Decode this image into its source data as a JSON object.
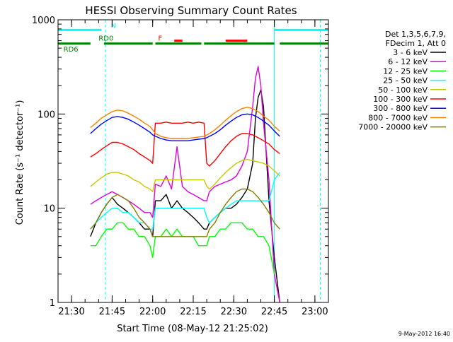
{
  "chart_data": {
    "type": "line",
    "title": "HESSI Observing Summary Count Rates",
    "xlabel": "Start Time (08-May-12 21:25:02)",
    "ylabel": "Count Rate (s⁻¹ detector⁻¹)",
    "x_unit": "minutes after 21:25:02",
    "xlim": [
      0,
      100
    ],
    "ylim": [
      1,
      1000
    ],
    "yscale": "log",
    "x_ticks": [
      {
        "x": 5,
        "label": "21:30"
      },
      {
        "x": 20,
        "label": "21:45"
      },
      {
        "x": 35,
        "label": "22:00"
      },
      {
        "x": 50,
        "label": "22:15"
      },
      {
        "x": 65,
        "label": "22:30"
      },
      {
        "x": 80,
        "label": "22:45"
      },
      {
        "x": 95,
        "label": "23:00"
      }
    ],
    "y_ticks": [
      {
        "y": 1,
        "label": "1"
      },
      {
        "y": 10,
        "label": "10"
      },
      {
        "y": 100,
        "label": "100"
      },
      {
        "y": 1000,
        "label": "1000"
      }
    ],
    "legend": {
      "position": "right",
      "header": [
        "Det 1,3,5,6,7,9,",
        "FDecim 1, Att 0"
      ]
    },
    "series": [
      {
        "name": "3 - 6 keV",
        "color": "#000000",
        "x": [
          12,
          14,
          16,
          18,
          20,
          22,
          24,
          26,
          28,
          30,
          32,
          34,
          35,
          36,
          38,
          40,
          42,
          44,
          46,
          48,
          50,
          52,
          54,
          55,
          56,
          58,
          60,
          62,
          64,
          66,
          68,
          70,
          72,
          73,
          74,
          75,
          76,
          78,
          80,
          82
        ],
        "y": [
          5,
          7,
          9,
          11,
          13,
          11,
          10,
          9,
          8,
          7,
          6,
          6,
          5,
          12,
          12,
          14,
          10,
          12,
          10,
          9,
          8,
          7,
          6,
          6,
          7,
          8,
          9,
          10,
          10,
          11,
          13,
          16,
          30,
          90,
          150,
          180,
          120,
          12,
          3,
          1
        ]
      },
      {
        "name": "6 - 12 keV",
        "color": "#e000e0",
        "x": [
          12,
          14,
          16,
          18,
          20,
          22,
          24,
          26,
          28,
          30,
          32,
          34,
          35,
          36,
          38,
          40,
          42,
          44,
          46,
          48,
          50,
          52,
          54,
          55,
          56,
          58,
          60,
          62,
          64,
          66,
          68,
          70,
          72,
          73,
          74,
          75,
          76,
          78,
          80,
          82
        ],
        "y": [
          11,
          12,
          13,
          14,
          15,
          14,
          13,
          12,
          11,
          10,
          9,
          9,
          8,
          18,
          17,
          22,
          16,
          45,
          17,
          15,
          14,
          13,
          12,
          12,
          15,
          17,
          18,
          19,
          20,
          22,
          28,
          40,
          120,
          240,
          320,
          200,
          80,
          20,
          2,
          1
        ]
      },
      {
        "name": "12 - 25 keV",
        "color": "#00ff00",
        "x": [
          12,
          14,
          16,
          18,
          20,
          22,
          24,
          26,
          28,
          30,
          32,
          34,
          35,
          36,
          38,
          40,
          42,
          44,
          46,
          48,
          50,
          52,
          54,
          55,
          56,
          58,
          60,
          62,
          64,
          66,
          68,
          70,
          72,
          74,
          76,
          78,
          80
        ],
        "y": [
          4,
          4,
          5,
          6,
          6,
          7,
          7,
          6,
          6,
          5,
          5,
          4,
          3,
          5,
          5,
          6,
          5,
          6,
          5,
          5,
          5,
          4,
          4,
          4,
          5,
          5,
          6,
          6,
          7,
          7,
          7,
          6,
          6,
          5,
          5,
          4,
          2
        ]
      },
      {
        "name": "25 - 50 keV",
        "color": "#00ffff",
        "x": [
          12,
          14,
          16,
          18,
          20,
          22,
          24,
          26,
          28,
          30,
          32,
          34,
          35,
          36,
          38,
          40,
          42,
          44,
          46,
          48,
          50,
          52,
          54,
          55,
          56,
          58,
          60,
          62,
          64,
          66,
          68,
          70,
          72,
          74,
          76,
          78,
          80,
          82
        ],
        "y": [
          6,
          7,
          8,
          9,
          10,
          10,
          9,
          9,
          8,
          7,
          7,
          6,
          6,
          10,
          10,
          10,
          10,
          10,
          10,
          10,
          10,
          10,
          10,
          8,
          7,
          8,
          9,
          10,
          11,
          12,
          12,
          12,
          12,
          12,
          12,
          12,
          20,
          24
        ]
      },
      {
        "name": "50 - 100 keV",
        "color": "#c8c800",
        "x": [
          12,
          14,
          16,
          18,
          20,
          22,
          24,
          26,
          28,
          30,
          32,
          34,
          35,
          36,
          38,
          40,
          42,
          44,
          46,
          48,
          50,
          52,
          54,
          55,
          56,
          58,
          60,
          62,
          64,
          66,
          68,
          70,
          72,
          74,
          76,
          78,
          80,
          82
        ],
        "y": [
          17,
          19,
          21,
          23,
          24,
          24,
          23,
          22,
          20,
          19,
          17,
          16,
          15,
          20,
          20,
          20,
          20,
          20,
          20,
          20,
          20,
          20,
          20,
          17,
          16,
          18,
          21,
          24,
          27,
          30,
          32,
          33,
          32,
          31,
          30,
          28,
          25,
          22
        ]
      },
      {
        "name": "100 - 300 keV",
        "color": "#ff0000",
        "x": [
          12,
          14,
          16,
          18,
          20,
          22,
          24,
          26,
          28,
          30,
          32,
          34,
          35,
          36,
          38,
          40,
          42,
          44,
          46,
          48,
          50,
          52,
          54,
          55,
          56,
          58,
          60,
          62,
          64,
          66,
          68,
          70,
          72,
          74,
          76,
          78,
          80,
          82
        ],
        "y": [
          35,
          38,
          42,
          46,
          50,
          50,
          48,
          45,
          42,
          38,
          35,
          32,
          30,
          80,
          80,
          82,
          80,
          80,
          80,
          82,
          80,
          82,
          80,
          30,
          28,
          32,
          38,
          45,
          52,
          58,
          62,
          62,
          60,
          56,
          52,
          48,
          42,
          38
        ]
      },
      {
        "name": "300 - 800 keV",
        "color": "#0000ff",
        "x": [
          12,
          14,
          16,
          18,
          20,
          22,
          24,
          26,
          28,
          30,
          32,
          34,
          35,
          36,
          38,
          40,
          42,
          44,
          46,
          48,
          50,
          52,
          54,
          55,
          56,
          58,
          60,
          62,
          64,
          66,
          68,
          70,
          72,
          74,
          76,
          78,
          80,
          82
        ],
        "y": [
          62,
          70,
          78,
          85,
          92,
          94,
          92,
          88,
          82,
          76,
          70,
          64,
          60,
          58,
          55,
          53,
          52,
          52,
          52,
          52,
          53,
          54,
          55,
          56,
          58,
          62,
          68,
          76,
          84,
          92,
          98,
          100,
          98,
          92,
          84,
          76,
          66,
          58
        ]
      },
      {
        "name": "800 - 7000 keV",
        "color": "#ff8000",
        "x": [
          12,
          14,
          16,
          18,
          20,
          22,
          24,
          26,
          28,
          30,
          32,
          34,
          35,
          36,
          38,
          40,
          42,
          44,
          46,
          48,
          50,
          52,
          54,
          55,
          56,
          58,
          60,
          62,
          64,
          66,
          68,
          70,
          72,
          74,
          76,
          78,
          80,
          82
        ],
        "y": [
          72,
          80,
          90,
          98,
          106,
          110,
          108,
          102,
          95,
          88,
          80,
          74,
          68,
          62,
          58,
          56,
          55,
          55,
          55,
          55,
          56,
          57,
          58,
          60,
          62,
          68,
          76,
          86,
          96,
          106,
          114,
          118,
          114,
          106,
          95,
          86,
          74,
          66
        ]
      },
      {
        "name": "7000 - 20000 keV",
        "color": "#808000",
        "x": [
          12,
          14,
          16,
          18,
          20,
          22,
          24,
          26,
          28,
          30,
          32,
          34,
          35,
          36,
          38,
          40,
          42,
          44,
          46,
          48,
          50,
          52,
          54,
          55,
          56,
          58,
          60,
          62,
          64,
          66,
          68,
          70,
          72,
          74,
          76,
          78,
          80,
          82
        ],
        "y": [
          6,
          7,
          9,
          11,
          13,
          14,
          13,
          12,
          10,
          8,
          7,
          6,
          5,
          5,
          5,
          5,
          5,
          5,
          5,
          5,
          5,
          5,
          5,
          5,
          6,
          7,
          9,
          11,
          13,
          15,
          16,
          16,
          15,
          13,
          11,
          9,
          7,
          6
        ]
      }
    ],
    "status_bars": [
      {
        "color": "#00ffff",
        "y": 780,
        "segments": [
          [
            0,
            16
          ],
          [
            80,
            100
          ]
        ]
      },
      {
        "color": "#008000",
        "y": 560,
        "segments": [
          [
            0,
            12
          ],
          [
            17,
            35
          ],
          [
            36,
            53
          ],
          [
            54,
            80
          ],
          [
            82,
            100
          ]
        ]
      },
      {
        "color": "#ff0000",
        "y": 600,
        "segments": [
          [
            43,
            46
          ],
          [
            62,
            70
          ]
        ]
      }
    ],
    "annotations": [
      {
        "text": "N",
        "x": 19.5,
        "y": 820,
        "color": "#00ffff"
      },
      {
        "text": "F",
        "x": 37,
        "y": 600,
        "color": "#ff0000"
      },
      {
        "text": "RD0",
        "x": 15,
        "y": 600,
        "color": "#008000"
      },
      {
        "text": "RD6",
        "x": 2,
        "y": 460,
        "color": "#008000"
      }
    ],
    "vlines": [
      {
        "x": 0,
        "style": "solid",
        "color": "#00ffff"
      },
      {
        "x": 17.5,
        "style": "dashed",
        "color": "#00ffff"
      },
      {
        "x": 80,
        "style": "solid",
        "color": "#00ffff"
      },
      {
        "x": 97,
        "style": "dashed",
        "color": "#00ffff"
      }
    ]
  },
  "footer": {
    "timestamp": "9-May-2012 16:40"
  }
}
